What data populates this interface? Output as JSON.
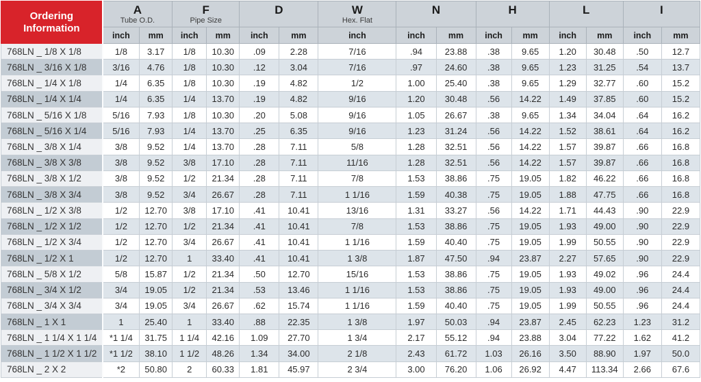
{
  "colors": {
    "accent_red": "#d8232a",
    "header_bg": "#cdd3d9",
    "row_alt_bg": "#dde4ea",
    "part_col_bg": "#eef0f3",
    "part_col_alt_bg": "#c3ccd4"
  },
  "header": {
    "ordering_line1": "Ordering",
    "ordering_line2": "Information",
    "groups": [
      {
        "letter": "A",
        "subtitle": "Tube O.D.",
        "span": 2
      },
      {
        "letter": "F",
        "subtitle": "Pipe Size",
        "span": 2
      },
      {
        "letter": "D",
        "subtitle": "",
        "span": 2
      },
      {
        "letter": "W",
        "subtitle": "Hex. Flat",
        "span": 1
      },
      {
        "letter": "N",
        "subtitle": "",
        "span": 2
      },
      {
        "letter": "H",
        "subtitle": "",
        "span": 2
      },
      {
        "letter": "L",
        "subtitle": "",
        "span": 2
      },
      {
        "letter": "I",
        "subtitle": "",
        "span": 2
      }
    ],
    "units": [
      "inch",
      "mm",
      "inch",
      "mm",
      "inch",
      "mm",
      "inch",
      "inch",
      "mm",
      "inch",
      "mm",
      "inch",
      "mm",
      "inch",
      "mm"
    ]
  },
  "rows": [
    [
      "768LN _ 1/8 X 1/8",
      "1/8",
      "3.17",
      "1/8",
      "10.30",
      ".09",
      "2.28",
      "7/16",
      ".94",
      "23.88",
      ".38",
      "9.65",
      "1.20",
      "30.48",
      ".50",
      "12.7"
    ],
    [
      "768LN _ 3/16 X 1/8",
      "3/16",
      "4.76",
      "1/8",
      "10.30",
      ".12",
      "3.04",
      "7/16",
      ".97",
      "24.60",
      ".38",
      "9.65",
      "1.23",
      "31.25",
      ".54",
      "13.7"
    ],
    [
      "768LN _ 1/4 X 1/8",
      "1/4",
      "6.35",
      "1/8",
      "10.30",
      ".19",
      "4.82",
      "1/2",
      "1.00",
      "25.40",
      ".38",
      "9.65",
      "1.29",
      "32.77",
      ".60",
      "15.2"
    ],
    [
      "768LN _ 1/4 X 1/4",
      "1/4",
      "6.35",
      "1/4",
      "13.70",
      ".19",
      "4.82",
      "9/16",
      "1.20",
      "30.48",
      ".56",
      "14.22",
      "1.49",
      "37.85",
      ".60",
      "15.2"
    ],
    [
      "768LN _ 5/16 X 1/8",
      "5/16",
      "7.93",
      "1/8",
      "10.30",
      ".20",
      "5.08",
      "9/16",
      "1.05",
      "26.67",
      ".38",
      "9.65",
      "1.34",
      "34.04",
      ".64",
      "16.2"
    ],
    [
      "768LN _ 5/16 X 1/4",
      "5/16",
      "7.93",
      "1/4",
      "13.70",
      ".25",
      "6.35",
      "9/16",
      "1.23",
      "31.24",
      ".56",
      "14.22",
      "1.52",
      "38.61",
      ".64",
      "16.2"
    ],
    [
      "768LN _ 3/8 X 1/4",
      "3/8",
      "9.52",
      "1/4",
      "13.70",
      ".28",
      "7.11",
      "5/8",
      "1.28",
      "32.51",
      ".56",
      "14.22",
      "1.57",
      "39.87",
      ".66",
      "16.8"
    ],
    [
      "768LN _ 3/8 X 3/8",
      "3/8",
      "9.52",
      "3/8",
      "17.10",
      ".28",
      "7.11",
      "11/16",
      "1.28",
      "32.51",
      ".56",
      "14.22",
      "1.57",
      "39.87",
      ".66",
      "16.8"
    ],
    [
      "768LN _ 3/8 X 1/2",
      "3/8",
      "9.52",
      "1/2",
      "21.34",
      ".28",
      "7.11",
      "7/8",
      "1.53",
      "38.86",
      ".75",
      "19.05",
      "1.82",
      "46.22",
      ".66",
      "16.8"
    ],
    [
      "768LN _ 3/8 X 3/4",
      "3/8",
      "9.52",
      "3/4",
      "26.67",
      ".28",
      "7.11",
      "1 1/16",
      "1.59",
      "40.38",
      ".75",
      "19.05",
      "1.88",
      "47.75",
      ".66",
      "16.8"
    ],
    [
      "768LN _ 1/2 X 3/8",
      "1/2",
      "12.70",
      "3/8",
      "17.10",
      ".41",
      "10.41",
      "13/16",
      "1.31",
      "33.27",
      ".56",
      "14.22",
      "1.71",
      "44.43",
      ".90",
      "22.9"
    ],
    [
      "768LN _ 1/2 X 1/2",
      "1/2",
      "12.70",
      "1/2",
      "21.34",
      ".41",
      "10.41",
      "7/8",
      "1.53",
      "38.86",
      ".75",
      "19.05",
      "1.93",
      "49.00",
      ".90",
      "22.9"
    ],
    [
      "768LN _ 1/2 X 3/4",
      "1/2",
      "12.70",
      "3/4",
      "26.67",
      ".41",
      "10.41",
      "1 1/16",
      "1.59",
      "40.40",
      ".75",
      "19.05",
      "1.99",
      "50.55",
      ".90",
      "22.9"
    ],
    [
      "768LN _ 1/2 X 1",
      "1/2",
      "12.70",
      "1",
      "33.40",
      ".41",
      "10.41",
      "1 3/8",
      "1.87",
      "47.50",
      ".94",
      "23.87",
      "2.27",
      "57.65",
      ".90",
      "22.9"
    ],
    [
      "768LN _ 5/8 X 1/2",
      "5/8",
      "15.87",
      "1/2",
      "21.34",
      ".50",
      "12.70",
      "15/16",
      "1.53",
      "38.86",
      ".75",
      "19.05",
      "1.93",
      "49.02",
      ".96",
      "24.4"
    ],
    [
      "768LN _ 3/4 X 1/2",
      "3/4",
      "19.05",
      "1/2",
      "21.34",
      ".53",
      "13.46",
      "1 1/16",
      "1.53",
      "38.86",
      ".75",
      "19.05",
      "1.93",
      "49.00",
      ".96",
      "24.4"
    ],
    [
      "768LN _ 3/4 X 3/4",
      "3/4",
      "19.05",
      "3/4",
      "26.67",
      ".62",
      "15.74",
      "1 1/16",
      "1.59",
      "40.40",
      ".75",
      "19.05",
      "1.99",
      "50.55",
      ".96",
      "24.4"
    ],
    [
      "768LN _ 1 X 1",
      "1",
      "25.40",
      "1",
      "33.40",
      ".88",
      "22.35",
      "1 3/8",
      "1.97",
      "50.03",
      ".94",
      "23.87",
      "2.45",
      "62.23",
      "1.23",
      "31.2"
    ],
    [
      "768LN _ 1 1/4 X 1 1/4",
      "*1 1/4",
      "31.75",
      "1 1/4",
      "42.16",
      "1.09",
      "27.70",
      "1 3/4",
      "2.17",
      "55.12",
      ".94",
      "23.88",
      "3.04",
      "77.22",
      "1.62",
      "41.2"
    ],
    [
      "768LN _ 1 1/2 X 1 1/2",
      "*1 1/2",
      "38.10",
      "1 1/2",
      "48.26",
      "1.34",
      "34.00",
      "2 1/8",
      "2.43",
      "61.72",
      "1.03",
      "26.16",
      "3.50",
      "88.90",
      "1.97",
      "50.0"
    ],
    [
      "768LN _ 2 X 2",
      "*2",
      "50.80",
      "2",
      "60.33",
      "1.81",
      "45.97",
      "2 3/4",
      "3.00",
      "76.20",
      "1.06",
      "26.92",
      "4.47",
      "113.34",
      "2.66",
      "67.6"
    ]
  ]
}
